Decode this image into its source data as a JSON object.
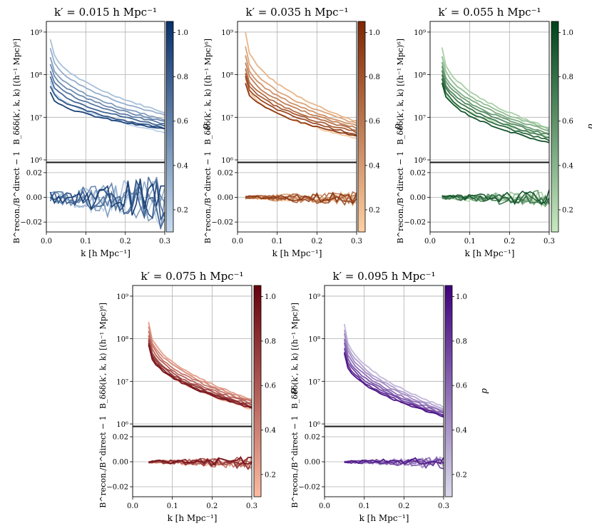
{
  "figure": {
    "ylabel_top": "B_δδδ(k′, k, k) [(h⁻¹ Mpc)⁶]",
    "ylabel_bottom": "B^recon./B^direct − 1",
    "xlabel": "k [h Mpc⁻¹]",
    "colorbar_label": "d"
  },
  "chart_data": [
    {
      "type": "line",
      "title": "k′ = 0.015 h Mpc⁻¹",
      "colormap": "Blues",
      "cmap_light": "#c6dbef",
      "cmap_dark": "#08306b",
      "k_start": 0.01,
      "xlim": [
        0.0,
        0.3
      ],
      "xticks": [
        "0.0",
        "0.1",
        "0.2",
        "0.3"
      ],
      "top_ylim_log10": [
        5.95,
        9.25
      ],
      "top_yticks": [
        "10⁶",
        "10⁷",
        "10⁸",
        "10⁹"
      ],
      "bottom_ylim": [
        -0.028,
        0.028
      ],
      "bottom_yticks": [
        "−0.02",
        "0.00",
        "0.02"
      ],
      "colorbar_range": [
        0.1,
        1.05
      ],
      "colorbar_ticks": [
        "0.2",
        "0.4",
        "0.6",
        "0.8",
        "1.0"
      ],
      "series": [
        {
          "d": 0.15,
          "start": 7.85,
          "end": 6.65
        },
        {
          "d": 0.25,
          "start": 8.82,
          "end": 7.12
        },
        {
          "d": 0.35,
          "start": 8.62,
          "end": 7.05
        },
        {
          "d": 0.45,
          "start": 8.4,
          "end": 6.95
        },
        {
          "d": 0.55,
          "start": 8.25,
          "end": 6.9
        },
        {
          "d": 0.65,
          "start": 8.1,
          "end": 6.85
        },
        {
          "d": 0.75,
          "start": 7.95,
          "end": 6.8
        },
        {
          "d": 0.85,
          "start": 7.75,
          "end": 6.75
        },
        {
          "d": 0.95,
          "start": 7.6,
          "end": 6.72
        }
      ],
      "residual_spread": 0.018
    },
    {
      "type": "line",
      "title": "k′ = 0.035 h Mpc⁻¹",
      "colormap": "Oranges",
      "cmap_light": "#fdd0a2",
      "cmap_dark": "#7f2704",
      "k_start": 0.02,
      "xlim": [
        0.0,
        0.3
      ],
      "xticks": [
        "0.0",
        "0.1",
        "0.2",
        "0.3"
      ],
      "top_ylim_log10": [
        5.95,
        9.25
      ],
      "top_yticks": [
        "10⁶",
        "10⁷",
        "10⁸",
        "10⁹"
      ],
      "bottom_ylim": [
        -0.028,
        0.028
      ],
      "bottom_yticks": [
        "−0.02",
        "0.00",
        "0.02"
      ],
      "colorbar_range": [
        0.1,
        1.05
      ],
      "colorbar_ticks": [
        "0.2",
        "0.4",
        "0.6",
        "0.8",
        "1.0"
      ],
      "series": [
        {
          "d": 0.15,
          "start": 7.9,
          "end": 6.5
        },
        {
          "d": 0.25,
          "start": 8.98,
          "end": 6.9
        },
        {
          "d": 0.35,
          "start": 8.65,
          "end": 6.85
        },
        {
          "d": 0.45,
          "start": 8.45,
          "end": 6.8
        },
        {
          "d": 0.55,
          "start": 8.3,
          "end": 6.75
        },
        {
          "d": 0.65,
          "start": 8.15,
          "end": 6.7
        },
        {
          "d": 0.75,
          "start": 8.05,
          "end": 6.65
        },
        {
          "d": 0.85,
          "start": 7.95,
          "end": 6.6
        },
        {
          "d": 0.95,
          "start": 7.8,
          "end": 6.55
        }
      ],
      "residual_spread": 0.005
    },
    {
      "type": "line",
      "title": "k′ = 0.055 h Mpc⁻¹",
      "colormap": "Greens",
      "cmap_light": "#c7e9c0",
      "cmap_dark": "#00441b",
      "k_start": 0.03,
      "xlim": [
        0.0,
        0.3
      ],
      "xticks": [
        "0.0",
        "0.1",
        "0.2",
        "0.3"
      ],
      "top_ylim_log10": [
        5.95,
        9.25
      ],
      "top_yticks": [
        "10⁶",
        "10⁷",
        "10⁸",
        "10⁹"
      ],
      "bottom_ylim": [
        -0.028,
        0.028
      ],
      "bottom_yticks": [
        "−0.02",
        "0.00",
        "0.02"
      ],
      "colorbar_range": [
        0.1,
        1.05
      ],
      "colorbar_ticks": [
        "0.2",
        "0.4",
        "0.6",
        "0.8",
        "1.0"
      ],
      "series": [
        {
          "d": 0.15,
          "start": 7.8,
          "end": 6.55
        },
        {
          "d": 0.25,
          "start": 8.65,
          "end": 6.75
        },
        {
          "d": 0.35,
          "start": 8.45,
          "end": 6.72
        },
        {
          "d": 0.45,
          "start": 8.3,
          "end": 6.68
        },
        {
          "d": 0.55,
          "start": 8.2,
          "end": 6.62
        },
        {
          "d": 0.65,
          "start": 8.1,
          "end": 6.58
        },
        {
          "d": 0.75,
          "start": 8.0,
          "end": 6.52
        },
        {
          "d": 0.85,
          "start": 7.9,
          "end": 6.46
        },
        {
          "d": 0.95,
          "start": 7.8,
          "end": 6.4
        }
      ],
      "residual_spread": 0.006
    },
    {
      "type": "line",
      "title": "k′ = 0.075 h Mpc⁻¹",
      "colormap": "Reds",
      "cmap_light": "#fcbba1",
      "cmap_dark": "#67000d",
      "k_start": 0.04,
      "xlim": [
        0.0,
        0.3
      ],
      "xticks": [
        "0.0",
        "0.1",
        "0.2",
        "0.3"
      ],
      "top_ylim_log10": [
        5.95,
        9.25
      ],
      "top_yticks": [
        "10⁶",
        "10⁷",
        "10⁸",
        "10⁹"
      ],
      "bottom_ylim": [
        -0.028,
        0.028
      ],
      "bottom_yticks": [
        "−0.02",
        "0.00",
        "0.02"
      ],
      "colorbar_range": [
        0.1,
        1.05
      ],
      "colorbar_ticks": [
        "0.2",
        "0.4",
        "0.6",
        "0.8",
        "1.0"
      ],
      "series": [
        {
          "d": 0.15,
          "start": 7.9,
          "end": 6.35
        },
        {
          "d": 0.25,
          "start": 8.4,
          "end": 6.58
        },
        {
          "d": 0.35,
          "start": 8.3,
          "end": 6.55
        },
        {
          "d": 0.45,
          "start": 8.2,
          "end": 6.52
        },
        {
          "d": 0.55,
          "start": 8.1,
          "end": 6.48
        },
        {
          "d": 0.65,
          "start": 8.0,
          "end": 6.45
        },
        {
          "d": 0.75,
          "start": 7.95,
          "end": 6.42
        },
        {
          "d": 0.85,
          "start": 7.9,
          "end": 6.4
        },
        {
          "d": 0.95,
          "start": 7.85,
          "end": 6.38
        }
      ],
      "residual_spread": 0.004
    },
    {
      "type": "line",
      "title": "k′ = 0.095 h Mpc⁻¹",
      "colormap": "Purples",
      "cmap_light": "#dadaeb",
      "cmap_dark": "#3f007d",
      "k_start": 0.05,
      "xlim": [
        0.0,
        0.3
      ],
      "xticks": [
        "0.0",
        "0.1",
        "0.2",
        "0.3"
      ],
      "top_ylim_log10": [
        5.95,
        9.25
      ],
      "top_yticks": [
        "10⁶",
        "10⁷",
        "10⁸",
        "10⁹"
      ],
      "bottom_ylim": [
        -0.028,
        0.028
      ],
      "bottom_yticks": [
        "−0.02",
        "0.00",
        "0.02"
      ],
      "colorbar_range": [
        0.1,
        1.05
      ],
      "colorbar_ticks": [
        "0.2",
        "0.4",
        "0.6",
        "0.8",
        "1.0"
      ],
      "series": [
        {
          "d": 0.15,
          "start": 7.95,
          "end": 6.2
        },
        {
          "d": 0.25,
          "start": 8.35,
          "end": 6.4
        },
        {
          "d": 0.35,
          "start": 8.22,
          "end": 6.35
        },
        {
          "d": 0.45,
          "start": 8.12,
          "end": 6.32
        },
        {
          "d": 0.55,
          "start": 8.0,
          "end": 6.28
        },
        {
          "d": 0.65,
          "start": 7.9,
          "end": 6.25
        },
        {
          "d": 0.75,
          "start": 7.8,
          "end": 6.22
        },
        {
          "d": 0.85,
          "start": 7.7,
          "end": 6.2
        },
        {
          "d": 0.95,
          "start": 7.65,
          "end": 6.18
        }
      ],
      "residual_spread": 0.004
    }
  ]
}
